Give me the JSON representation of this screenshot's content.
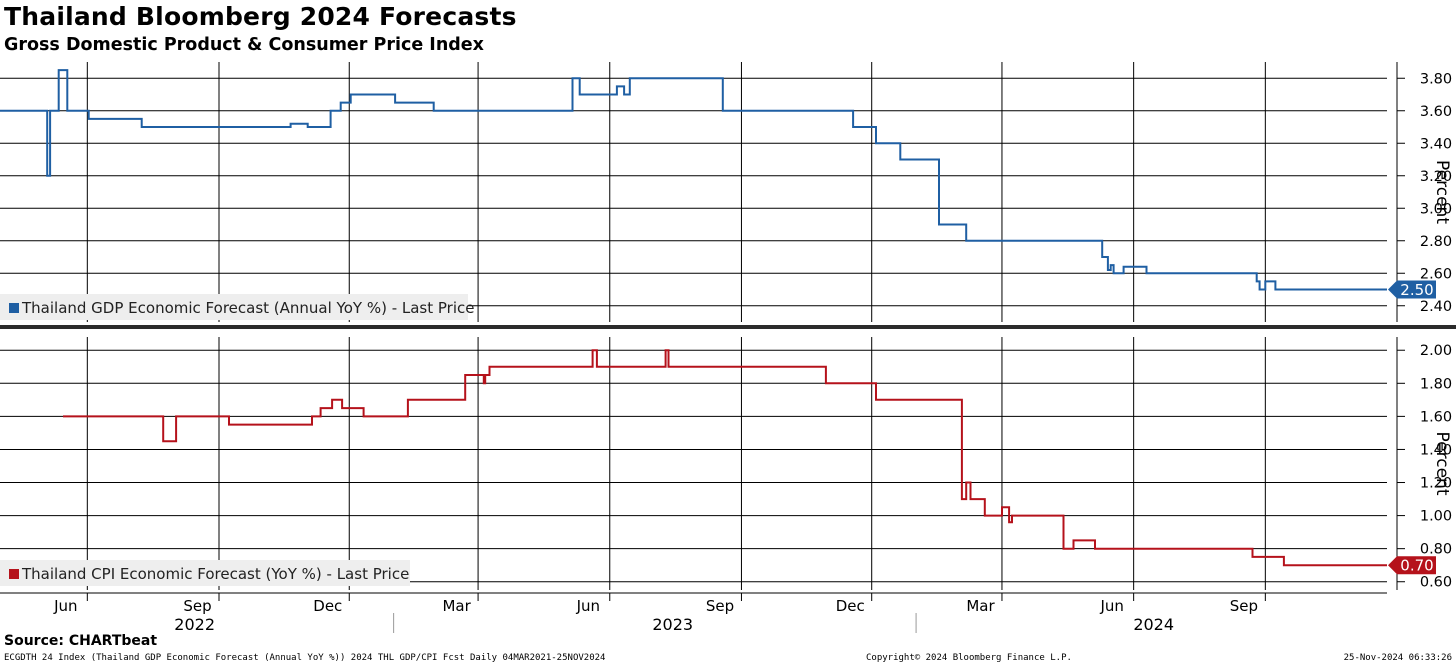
{
  "title": "Thailand Bloomberg 2024 Forecasts",
  "subtitle": "Gross Domestic Product & Consumer Price Index",
  "source": "Source: CHARTbeat",
  "footer": {
    "left": "ECGDTH 24 Index (Thailand GDP Economic Forecast (Annual YoY %)) 2024 THL GDP/CPI Fcst  Daily 04MAR2021-25NOV2024",
    "middle": "Copyright© 2024 Bloomberg Finance L.P.",
    "right": "25-Nov-2024 06:33:26"
  },
  "colors": {
    "gdp": "#1f5fa3",
    "cpi": "#b5121b",
    "grid": "#000000",
    "legend_bg": "#eeeeee"
  },
  "x_axis": {
    "month_labels": [
      {
        "date": "2022-06-01",
        "label": "Jun"
      },
      {
        "date": "2022-09-01",
        "label": "Sep"
      },
      {
        "date": "2022-12-01",
        "label": "Dec"
      },
      {
        "date": "2023-03-01",
        "label": "Mar"
      },
      {
        "date": "2023-06-01",
        "label": "Jun"
      },
      {
        "date": "2023-09-01",
        "label": "Sep"
      },
      {
        "date": "2023-12-01",
        "label": "Dec"
      },
      {
        "date": "2024-03-01",
        "label": "Mar"
      },
      {
        "date": "2024-06-01",
        "label": "Jun"
      },
      {
        "date": "2024-09-01",
        "label": "Sep"
      }
    ],
    "year_labels": [
      {
        "date": "2022-08-15",
        "label": "2022"
      },
      {
        "date": "2023-07-15",
        "label": "2023"
      },
      {
        "date": "2024-06-15",
        "label": "2024"
      }
    ]
  },
  "chart_data": [
    {
      "type": "line",
      "ylabel": "Percent",
      "ylim": [
        2.3,
        3.9
      ],
      "yticks": [
        "2.40",
        "2.60",
        "2.80",
        "3.00",
        "3.20",
        "3.40",
        "3.60",
        "3.80"
      ],
      "legend": "Thailand GDP Economic Forecast (Annual YoY %) - Last Price",
      "last_value_label": "2.50",
      "series": [
        {
          "name": "Thailand GDP Economic Forecast (Annual YoY %) - Last Price",
          "x": [
            "2022-04-01",
            "2022-05-02",
            "2022-05-04",
            "2022-05-06",
            "2022-05-12",
            "2022-05-14",
            "2022-05-18",
            "2022-06-02",
            "2022-07-09",
            "2022-10-19",
            "2022-10-21",
            "2022-11-02",
            "2022-11-11",
            "2022-11-18",
            "2022-11-25",
            "2022-12-02",
            "2023-01-02",
            "2023-01-29",
            "2023-05-06",
            "2023-05-08",
            "2023-05-11",
            "2023-06-06",
            "2023-06-08",
            "2023-06-11",
            "2023-06-15",
            "2023-08-19",
            "2023-11-18",
            "2023-12-04",
            "2023-12-21",
            "2024-01-16",
            "2024-01-17",
            "2024-02-05",
            "2024-05-10",
            "2024-05-14",
            "2024-05-16",
            "2024-05-18",
            "2024-05-20",
            "2024-05-25",
            "2024-06-10",
            "2024-08-26",
            "2024-08-28",
            "2024-09-01",
            "2024-09-05",
            "2024-09-08",
            "2024-11-25"
          ],
          "y": [
            3.6,
            3.6,
            3.2,
            3.6,
            3.85,
            3.85,
            3.6,
            3.55,
            3.5,
            3.5,
            3.52,
            3.5,
            3.5,
            3.6,
            3.65,
            3.7,
            3.65,
            3.6,
            3.8,
            3.8,
            3.7,
            3.75,
            3.75,
            3.7,
            3.8,
            3.6,
            3.5,
            3.4,
            3.3,
            3.3,
            2.9,
            2.8,
            2.7,
            2.62,
            2.65,
            2.6,
            2.6,
            2.64,
            2.6,
            2.55,
            2.5,
            2.55,
            2.55,
            2.5,
            2.5
          ]
        }
      ]
    },
    {
      "type": "line",
      "ylabel": "Percent",
      "ylim": [
        0.55,
        2.08
      ],
      "yticks": [
        "0.60",
        "0.80",
        "1.00",
        "1.20",
        "1.40",
        "1.60",
        "1.80",
        "2.00"
      ],
      "legend": "Thailand CPI Economic Forecast (YoY %) - Last Price",
      "last_value_label": "0.70",
      "series": [
        {
          "name": "Thailand CPI Economic Forecast (YoY %) - Last Price",
          "x": [
            "2022-05-15",
            "2022-06-03",
            "2022-07-24",
            "2022-08-02",
            "2022-09-08",
            "2022-11-05",
            "2022-11-11",
            "2022-11-19",
            "2022-11-26",
            "2022-12-11",
            "2023-01-11",
            "2023-02-20",
            "2023-03-05",
            "2023-03-06",
            "2023-03-09",
            "2023-05-01",
            "2023-05-20",
            "2023-05-23",
            "2023-07-10",
            "2023-07-12",
            "2023-08-22",
            "2023-10-30",
            "2023-12-04",
            "2023-12-07",
            "2023-12-24",
            "2024-02-02",
            "2024-02-05",
            "2024-02-08",
            "2024-02-18",
            "2024-03-01",
            "2024-03-06",
            "2024-03-08",
            "2024-03-12",
            "2024-03-15",
            "2024-04-13",
            "2024-04-20",
            "2024-05-05",
            "2024-08-20",
            "2024-08-23",
            "2024-09-12",
            "2024-09-14",
            "2024-11-25"
          ],
          "y": [
            1.6,
            1.6,
            1.45,
            1.6,
            1.55,
            1.6,
            1.65,
            1.7,
            1.65,
            1.6,
            1.7,
            1.85,
            1.8,
            1.85,
            1.9,
            1.9,
            2.0,
            1.9,
            2.0,
            1.9,
            1.9,
            1.8,
            1.7,
            1.7,
            1.7,
            1.1,
            1.2,
            1.1,
            1.0,
            1.05,
            0.96,
            1.0,
            1.0,
            1.0,
            0.8,
            0.85,
            0.8,
            0.8,
            0.75,
            0.75,
            0.7,
            0.7
          ]
        }
      ]
    }
  ]
}
